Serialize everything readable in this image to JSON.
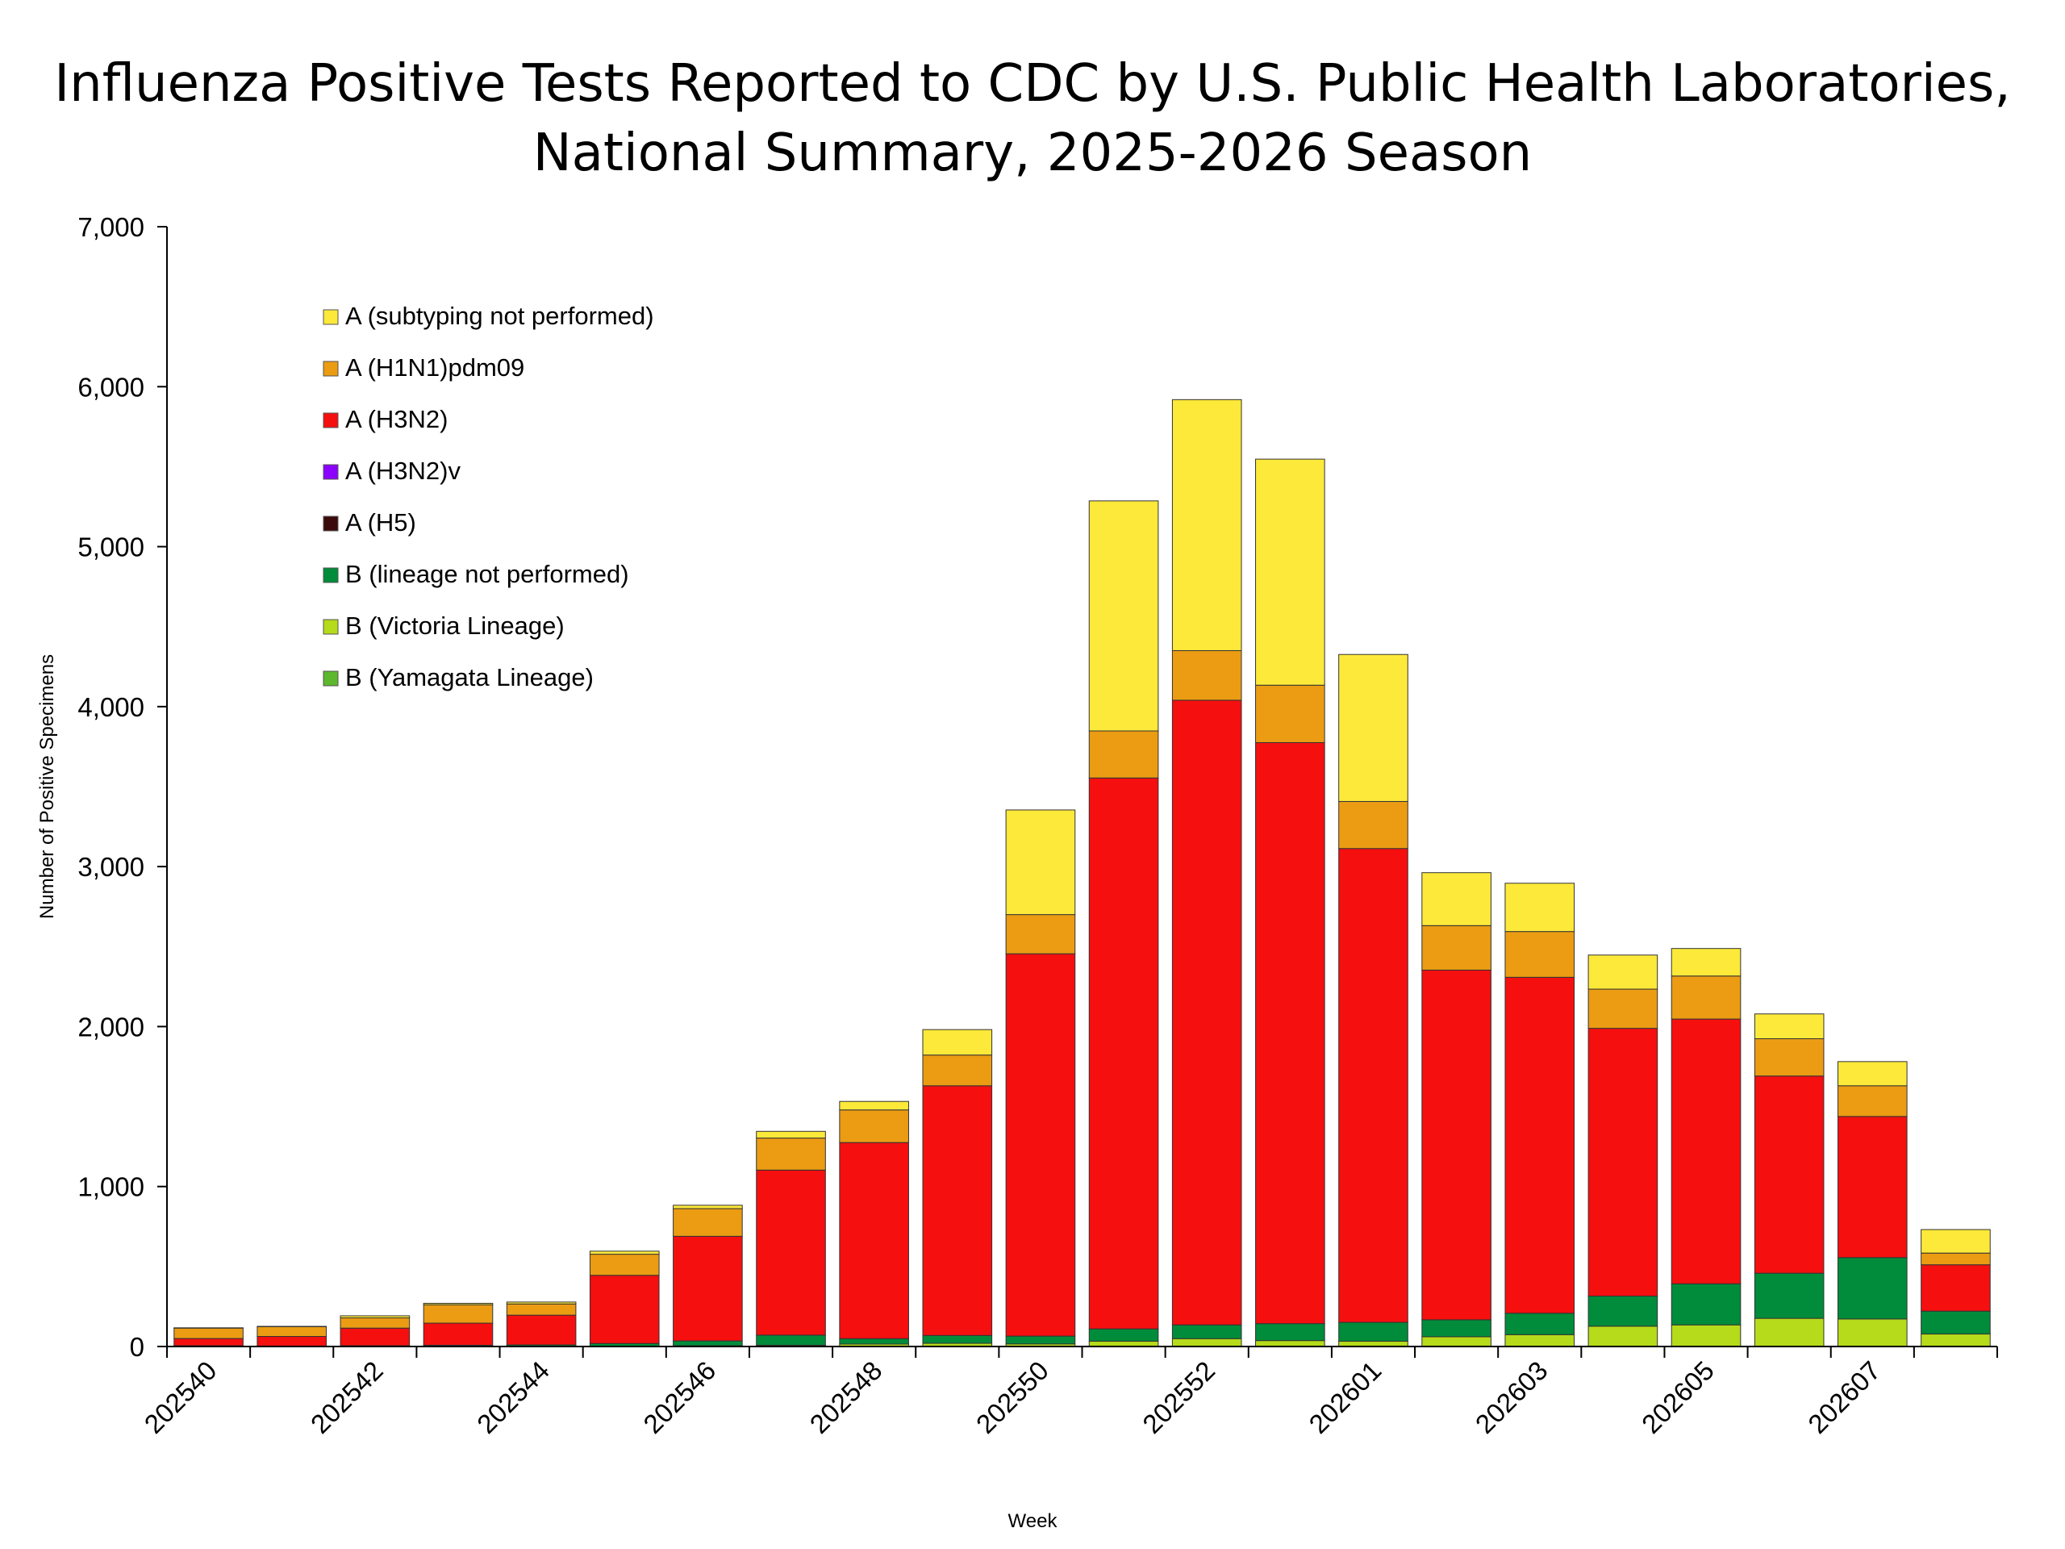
{
  "chart_data": {
    "type": "bar",
    "stacked": true,
    "title_lines": [
      "Influenza Positive Tests Reported to CDC by U.S. Public Health Laboratories,",
      "National Summary, 2025-2026 Season"
    ],
    "xlabel": "Week",
    "ylabel": "Number of Positive Specimens",
    "ylim": [
      0,
      7000
    ],
    "yticks": [
      0,
      1000,
      2000,
      3000,
      4000,
      5000,
      6000,
      7000
    ],
    "ytick_labels": [
      "0",
      "1,000",
      "2,000",
      "3,000",
      "4,000",
      "5,000",
      "6,000",
      "7,000"
    ],
    "grid": false,
    "legend_placement": "top-left",
    "categories": [
      "202540",
      "202541",
      "202542",
      "202543",
      "202544",
      "202545",
      "202546",
      "202547",
      "202548",
      "202549",
      "202550",
      "202551",
      "202552",
      "202553",
      "202601",
      "202602",
      "202603",
      "202604",
      "202605",
      "202606",
      "202607",
      "202608"
    ],
    "xtick_labels": [
      "202540",
      "202542",
      "202544",
      "202546",
      "202548",
      "202550",
      "202552",
      "202601",
      "202603",
      "202605",
      "202607"
    ],
    "series": [
      {
        "name": "B (Victoria Lineage)",
        "color": "#B5DB1A",
        "values": [
          0,
          0,
          0,
          0,
          0,
          0,
          5,
          8,
          15,
          20,
          16,
          33,
          49,
          37,
          33,
          61,
          74,
          127,
          135,
          176,
          172,
          78
        ]
      },
      {
        "name": "B (lineage not performed)",
        "color": "#008C3A",
        "values": [
          5,
          3,
          5,
          8,
          10,
          19,
          30,
          63,
          34,
          49,
          49,
          77,
          86,
          106,
          118,
          106,
          134,
          188,
          257,
          282,
          384,
          143
        ]
      },
      {
        "name": "B (Yamagata Lineage)",
        "color": "#5DB82D",
        "values": [
          0,
          0,
          0,
          0,
          0,
          0,
          0,
          0,
          0,
          0,
          0,
          0,
          0,
          0,
          0,
          0,
          0,
          0,
          0,
          0,
          0,
          0
        ]
      },
      {
        "name": "A (H5)",
        "color": "#3B0A0A",
        "values": [
          0,
          0,
          0,
          0,
          0,
          0,
          0,
          0,
          0,
          0,
          0,
          0,
          0,
          0,
          0,
          0,
          0,
          0,
          0,
          0,
          0,
          0
        ]
      },
      {
        "name": "A (H3N2)v",
        "color": "#8B00FF",
        "values": [
          0,
          0,
          0,
          0,
          0,
          0,
          0,
          0,
          0,
          0,
          0,
          0,
          0,
          0,
          0,
          0,
          0,
          0,
          0,
          0,
          0,
          0
        ]
      },
      {
        "name": "A (H3N2)",
        "color": "#F50F0F",
        "values": [
          45,
          60,
          110,
          138,
          186,
          426,
          654,
          1032,
          1226,
          1561,
          2390,
          3444,
          3905,
          3632,
          2962,
          2186,
          2100,
          1674,
          1655,
          1233,
          882,
          290
        ]
      },
      {
        "name": "A (H1N1)pdm09",
        "color": "#EB9C12",
        "values": [
          65,
          61,
          64,
          115,
          70,
          132,
          173,
          200,
          204,
          192,
          245,
          294,
          310,
          359,
          294,
          278,
          286,
          245,
          269,
          233,
          192,
          73
        ]
      },
      {
        "name": "A (subtyping not performed)",
        "color": "#FCE93A",
        "values": [
          2,
          2,
          13,
          9,
          12,
          19,
          21,
          42,
          53,
          159,
          654,
          1438,
          1569,
          1413,
          919,
          331,
          302,
          213,
          172,
          155,
          151,
          147
        ]
      }
    ],
    "legend_order": [
      "A (subtyping not performed)",
      "A (H1N1)pdm09",
      "A (H3N2)",
      "A (H3N2)v",
      "A (H5)",
      "B (lineage not performed)",
      "B (Victoria Lineage)",
      "B (Yamagata Lineage)"
    ]
  }
}
